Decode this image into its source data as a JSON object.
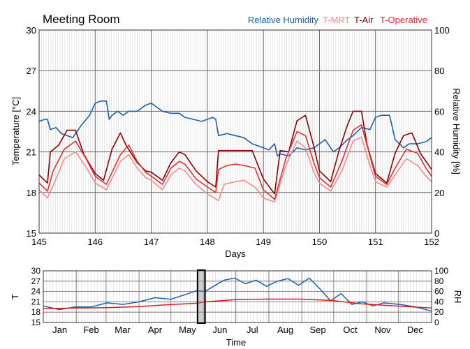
{
  "chart_data": [
    {
      "id": "detail",
      "type": "line",
      "title": "Meeting Room",
      "xlabel": "Days",
      "ylabel_left": "Temperature [°C]",
      "ylabel_right": "Relative Humidity [%]",
      "xlim": [
        145,
        152
      ],
      "ylim_left": [
        15,
        30
      ],
      "ylim_right": [
        0,
        100
      ],
      "xticks": [
        145,
        146,
        147,
        148,
        149,
        150,
        151,
        152
      ],
      "yticks_left": [
        15,
        18,
        21,
        24,
        27,
        30
      ],
      "yticks_right": [
        0,
        20,
        40,
        60,
        80,
        100
      ],
      "legend_position": "top-right",
      "series": [
        {
          "name": "Relative Humidity",
          "axis": "right",
          "color": "#1f5fa8",
          "x": [
            145.0,
            145.1,
            145.15,
            145.2,
            145.3,
            145.4,
            145.5,
            145.6,
            145.75,
            145.9,
            146.0,
            146.1,
            146.2,
            146.25,
            146.3,
            146.4,
            146.5,
            146.6,
            146.75,
            146.9,
            147.0,
            147.1,
            147.2,
            147.35,
            147.5,
            147.6,
            147.75,
            147.9,
            148.0,
            148.1,
            148.15,
            148.2,
            148.35,
            148.5,
            148.65,
            148.8,
            149.0,
            149.1,
            149.2,
            149.25,
            149.3,
            149.45,
            149.6,
            149.75,
            149.9,
            150.0,
            150.1,
            150.25,
            150.35,
            150.5,
            150.6,
            150.75,
            150.9,
            151.0,
            151.1,
            151.25,
            151.35,
            151.5,
            151.6,
            151.75,
            151.9,
            152.0
          ],
          "y": [
            55,
            56,
            56,
            51,
            52,
            49,
            48,
            47,
            53,
            58,
            64,
            65,
            65,
            56,
            58,
            60,
            58,
            60,
            60,
            63,
            64,
            62,
            60,
            59,
            59,
            57,
            56,
            55,
            56,
            57,
            56,
            48,
            49,
            48,
            47,
            44,
            42,
            41,
            44,
            38,
            39,
            38,
            42,
            41,
            42,
            44,
            46,
            40,
            42,
            46,
            48,
            52,
            51,
            57,
            58,
            58,
            46,
            42,
            44,
            44,
            45,
            47
          ]
        },
        {
          "name": "T-MRT",
          "axis": "left",
          "color": "#f28c8c",
          "x": [
            145.0,
            145.15,
            145.25,
            145.45,
            145.65,
            145.85,
            146.0,
            146.2,
            146.45,
            146.6,
            146.75,
            146.9,
            147.0,
            147.2,
            147.35,
            147.5,
            147.6,
            147.8,
            148.0,
            148.2,
            148.3,
            148.5,
            148.65,
            148.85,
            149.0,
            149.2,
            149.4,
            149.6,
            149.75,
            149.9,
            150.0,
            150.2,
            150.4,
            150.6,
            150.75,
            150.9,
            151.0,
            151.2,
            151.35,
            151.55,
            151.75,
            151.9,
            152.0
          ],
          "y": [
            18.2,
            17.6,
            18.5,
            20.5,
            21.0,
            19.8,
            18.7,
            18.2,
            20.3,
            20.8,
            19.8,
            19.1,
            18.9,
            18.2,
            19.3,
            19.8,
            19.6,
            18.6,
            17.9,
            17.4,
            18.6,
            18.8,
            18.9,
            18.4,
            17.6,
            17.3,
            20.0,
            21.8,
            21.3,
            19.5,
            18.7,
            18.1,
            19.6,
            21.8,
            22.1,
            20.0,
            18.8,
            18.4,
            19.3,
            20.5,
            20.0,
            19.2,
            18.8
          ]
        },
        {
          "name": "T-Air",
          "axis": "left",
          "color": "#8b0000",
          "x": [
            145.0,
            145.15,
            145.2,
            145.35,
            145.5,
            145.65,
            145.8,
            146.0,
            146.15,
            146.3,
            146.45,
            146.55,
            146.75,
            146.9,
            147.0,
            147.2,
            147.35,
            147.5,
            147.6,
            147.8,
            148.0,
            148.15,
            148.2,
            148.35,
            148.5,
            148.65,
            148.8,
            149.0,
            149.2,
            149.3,
            149.45,
            149.6,
            149.75,
            149.9,
            150.0,
            150.2,
            150.35,
            150.5,
            150.6,
            150.75,
            150.85,
            151.0,
            151.2,
            151.35,
            151.5,
            151.65,
            151.8,
            152.0
          ],
          "y": [
            19.3,
            18.7,
            21.0,
            21.5,
            22.6,
            22.6,
            20.8,
            19.4,
            18.9,
            21.2,
            22.4,
            21.5,
            20.2,
            19.6,
            19.5,
            18.9,
            20.2,
            21.0,
            20.8,
            19.6,
            18.8,
            18.4,
            21.1,
            21.1,
            21.1,
            21.1,
            21.1,
            19.0,
            17.9,
            21.1,
            21.0,
            23.3,
            23.7,
            21.4,
            19.6,
            18.8,
            21.1,
            23.0,
            24.0,
            24.0,
            21.5,
            19.4,
            18.7,
            20.9,
            22.2,
            22.4,
            20.9,
            19.7
          ]
        },
        {
          "name": "T-Operative",
          "axis": "left",
          "color": "#e03030",
          "x": [
            145.0,
            145.15,
            145.25,
            145.45,
            145.65,
            145.85,
            146.0,
            146.2,
            146.45,
            146.6,
            146.75,
            146.9,
            147.0,
            147.2,
            147.35,
            147.5,
            147.6,
            147.8,
            148.0,
            148.15,
            148.2,
            148.35,
            148.5,
            148.65,
            148.85,
            149.0,
            149.2,
            149.4,
            149.6,
            149.75,
            149.9,
            150.0,
            150.2,
            150.4,
            150.6,
            150.75,
            150.9,
            151.0,
            151.2,
            151.35,
            151.55,
            151.75,
            151.9,
            152.0
          ],
          "y": [
            18.7,
            18.1,
            19.6,
            21.2,
            21.8,
            20.4,
            19.2,
            18.6,
            20.8,
            21.5,
            20.3,
            19.5,
            19.2,
            18.6,
            19.8,
            20.3,
            20.1,
            19.0,
            18.4,
            18.0,
            19.7,
            20.0,
            20.1,
            20.0,
            19.8,
            18.2,
            17.5,
            20.5,
            22.5,
            22.2,
            20.2,
            19.1,
            18.4,
            20.3,
            22.6,
            23.0,
            20.7,
            19.2,
            18.6,
            19.8,
            21.2,
            20.9,
            19.8,
            19.2
          ]
        }
      ]
    },
    {
      "id": "overview",
      "type": "line",
      "xlabel": "Time",
      "ylabel_left": "T",
      "ylabel_right": "RH",
      "ylim_left": [
        15,
        30
      ],
      "ylim_right": [
        0,
        100
      ],
      "yticks_left": [
        15,
        18,
        21,
        24,
        27,
        30
      ],
      "yticks_right": [
        0,
        20,
        40,
        60,
        80,
        100
      ],
      "months": [
        "Jan",
        "Feb",
        "Mar",
        "Apr",
        "May",
        "Jun",
        "Jul",
        "Aug",
        "Sep",
        "Oct",
        "Nov",
        "Dec"
      ],
      "selection": [
        145,
        152
      ],
      "series": [
        {
          "name": "Relative Humidity",
          "axis": "right",
          "color": "#1f5fa8",
          "x": [
            0,
            15,
            30,
            45,
            60,
            75,
            90,
            105,
            120,
            135,
            145,
            152,
            160,
            170,
            180,
            190,
            200,
            210,
            220,
            230,
            240,
            250,
            260,
            270,
            280,
            290,
            300,
            310,
            320,
            335,
            350,
            365
          ],
          "y": [
            32,
            25,
            30,
            30,
            38,
            35,
            40,
            48,
            45,
            55,
            62,
            60,
            70,
            82,
            86,
            75,
            82,
            70,
            80,
            85,
            72,
            86,
            65,
            42,
            56,
            35,
            40,
            32,
            38,
            35,
            30,
            22
          ]
        },
        {
          "name": "T-Air",
          "axis": "left",
          "color": "#dd1c1c",
          "x": [
            0,
            30,
            60,
            90,
            120,
            145,
            152,
            180,
            210,
            240,
            270,
            300,
            330,
            365
          ],
          "y": [
            19,
            19.2,
            19.3,
            19.6,
            20.2,
            20.6,
            21.0,
            21.6,
            21.8,
            21.8,
            21.4,
            20.4,
            19.8,
            19.2
          ]
        }
      ]
    }
  ]
}
